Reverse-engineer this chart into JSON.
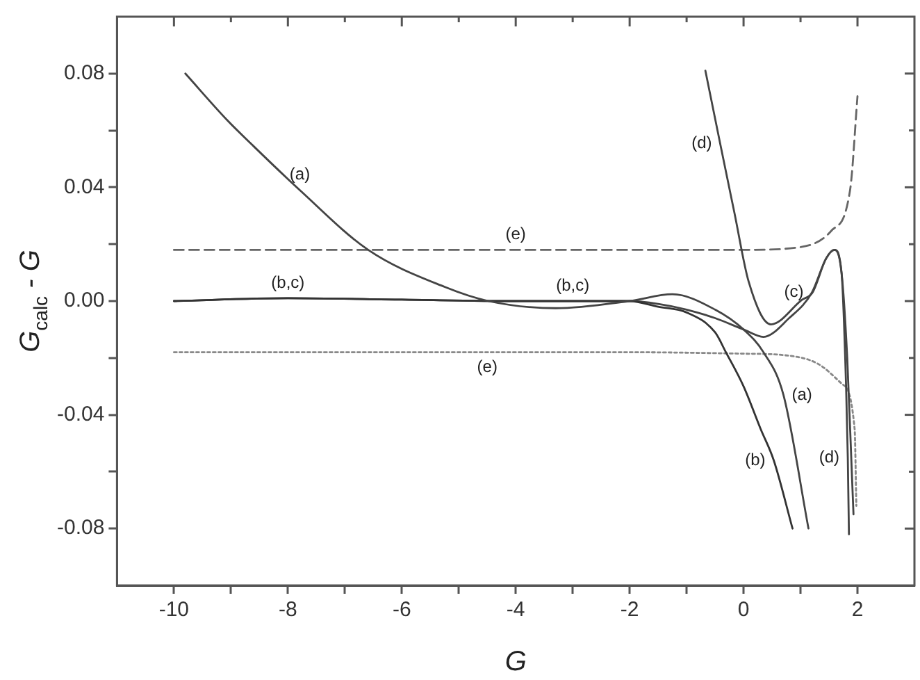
{
  "chart_data": {
    "type": "line",
    "xlabel": "G",
    "ylabel": "G$_{calc}$ - G",
    "xlim": [
      -11,
      3
    ],
    "xticks": [
      -10,
      {
        "value": -9,
        "label": null
      },
      -8,
      {
        "value": -7,
        "label": null
      },
      -6,
      {
        "value": -5,
        "label": null
      },
      -4,
      {
        "value": -3,
        "label": null
      },
      -2,
      {
        "value": -1,
        "label": null
      },
      0,
      {
        "value": 1,
        "label": null
      },
      2
    ],
    "ylim": [
      -0.1,
      0.1
    ],
    "yticks": [
      -0.08,
      {
        "value": -0.06,
        "label": null
      },
      -0.04,
      {
        "value": -0.02,
        "label": null
      },
      {
        "value": 0,
        "label": "0.00"
      },
      {
        "value": 0.02,
        "label": null
      },
      0.04,
      {
        "value": 0.06,
        "label": null
      },
      0.08
    ],
    "grid": false,
    "legend": false,
    "marker": "none",
    "series": [
      {
        "color": "#444444",
        "line_style": "solid",
        "x": [
          -9.8,
          -9.06,
          -8.63,
          -7.79,
          -6.59,
          -5.25,
          -4.48,
          -3.3,
          -2,
          -1.25,
          -0.5,
          0,
          0.35,
          0.7,
          1.14
        ],
        "values": [
          0.08,
          0.0635,
          0.055,
          0.039,
          0.018,
          0.005,
          0,
          -0.0025,
          0,
          0.0024,
          -0.003,
          -0.01,
          -0.018,
          -0.033,
          -0.08
        ]
      },
      {
        "color": "#333333",
        "line_style": "solid",
        "x": [
          -10,
          -8,
          -6,
          -4,
          -3,
          -2,
          -1.5,
          -1,
          -0.5,
          -0.31,
          0,
          0.3,
          0.53,
          0.86
        ],
        "values": [
          0,
          0.001,
          0.0005,
          0,
          0,
          0,
          -0.002,
          -0.004,
          -0.011,
          -0.018,
          -0.03,
          -0.045,
          -0.056,
          -0.08
        ]
      },
      {
        "color": "#444444",
        "line_style": "solid",
        "x": [
          -10,
          -8,
          -6,
          -4,
          -2,
          -1.5,
          -1,
          -0.5,
          0,
          0.35,
          0.8,
          1.2,
          1.45,
          1.59,
          1.72,
          1.82,
          1.9,
          1.93
        ],
        "values": [
          0,
          0.001,
          0.0005,
          0,
          0,
          -0.001,
          -0.003,
          -0.006,
          -0.01,
          -0.0126,
          -0.006,
          0.003,
          0.015,
          0.018,
          0.01,
          -0.02,
          -0.06,
          -0.075
        ]
      },
      {
        "color": "#444444",
        "line_style": "solid",
        "x": [
          -0.67,
          -0.41,
          -0.16,
          0.09,
          0.48,
          1.03,
          1.21,
          1.45,
          1.6,
          1.72,
          1.8,
          1.83,
          1.85
        ],
        "values": [
          0.081,
          0.0553,
          0.031,
          0.0068,
          -0.0082,
          0.0005,
          0.003,
          0.015,
          0.018,
          0.01,
          -0.03,
          -0.055,
          -0.082
        ]
      },
      {
        "color": "#666666",
        "line_style": "dashed",
        "x": [
          -10,
          -6,
          -4,
          -2,
          0,
          1,
          1.54,
          1.87,
          2
        ],
        "values": [
          0.018,
          0.018,
          0.018,
          0.018,
          0.018,
          0.019,
          0.0247,
          0.039,
          0.072
        ]
      },
      {
        "color": "#888888",
        "line_style": "dotted",
        "x": [
          -10,
          -6,
          -4.5,
          -2,
          0,
          0.7,
          1.3,
          1.72,
          1.95,
          1.98
        ],
        "values": [
          -0.018,
          -0.018,
          -0.018,
          -0.018,
          -0.0185,
          -0.019,
          -0.022,
          -0.029,
          -0.045,
          -0.072
        ]
      }
    ],
    "annotations": [
      {
        "text": "(a)",
        "x": -7.79,
        "y": 0.039
      },
      {
        "text": "(b,c)",
        "x": -8,
        "y": 0.001
      },
      {
        "text": "(b,c)",
        "x": -3,
        "y": 0
      },
      {
        "text": "(e)",
        "x": -4,
        "y": 0.018
      },
      {
        "text": "(e)",
        "x": -4.5,
        "y": -0.018
      },
      {
        "text": "(d)",
        "x": -0.41,
        "y": 0.0553
      },
      {
        "text": "(c)",
        "x": 1.2,
        "y": 0.003
      },
      {
        "text": "(a)",
        "x": 0.7,
        "y": -0.033
      },
      {
        "text": "(b)",
        "x": 0.53,
        "y": -0.056
      },
      {
        "text": "(d)",
        "x": 1.83,
        "y": -0.055
      }
    ]
  }
}
